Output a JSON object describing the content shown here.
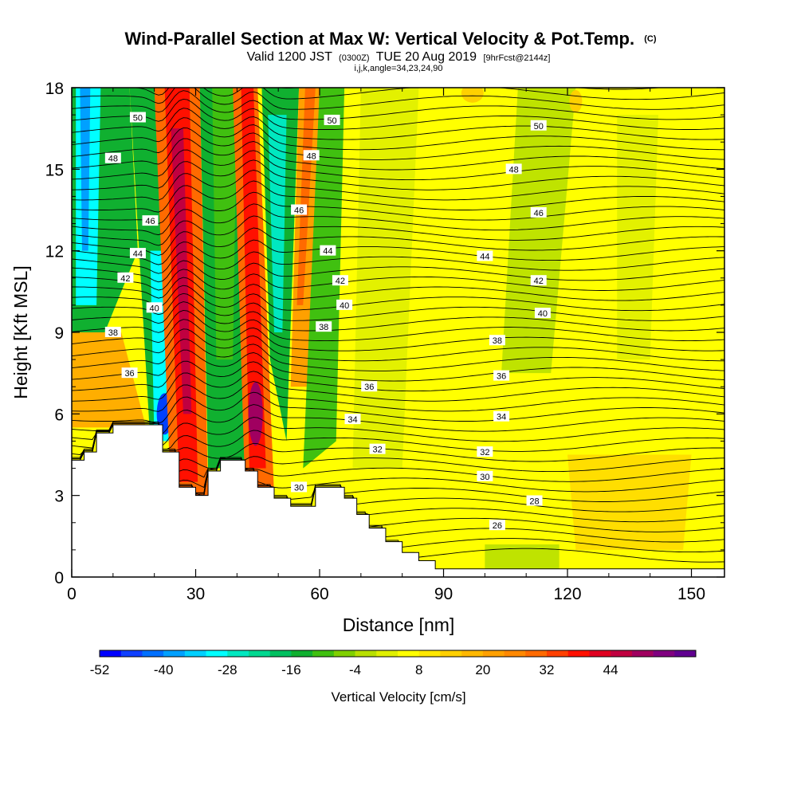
{
  "chart_data": {
    "type": "heatmap",
    "title_main": "Wind-Parallel Section at Max W: Vertical Velocity & Pot.Temp.",
    "title_units": "(C)",
    "subtitle_valid": "Valid 1200 JST",
    "subtitle_z": "(0300Z)",
    "subtitle_date": "TUE 20 Aug 2019",
    "subtitle_fcst": "[9hrFcst@2144z]",
    "subtitle_ijk": "i,j,k,angle=34,23,24,90",
    "xlabel": "Distance [nm]",
    "ylabel": "Height [Kft MSL]",
    "xlim": [
      0,
      158
    ],
    "ylim": [
      0,
      18
    ],
    "x_ticks": [
      "0",
      "30",
      "60",
      "90",
      "120",
      "150"
    ],
    "x_tick_values": [
      0,
      30,
      60,
      90,
      120,
      150
    ],
    "y_ticks": [
      "0",
      "3",
      "6",
      "9",
      "12",
      "15",
      "18"
    ],
    "y_tick_values": [
      0,
      3,
      6,
      9,
      12,
      15,
      18
    ],
    "colorbar": {
      "label": "Vertical Velocity [cm/s]",
      "min": -52,
      "step": 4,
      "ticks": [
        "-52",
        "-40",
        "-28",
        "-16",
        "-4",
        "8",
        "20",
        "32",
        "44"
      ],
      "colors": [
        "#0000ff",
        "#1040ff",
        "#0070ff",
        "#00a0ff",
        "#00d0ff",
        "#00ffff",
        "#00e8c0",
        "#00d890",
        "#00c060",
        "#10b030",
        "#40c010",
        "#80d000",
        "#b8e000",
        "#e0f000",
        "#ffff00",
        "#ffe800",
        "#ffd000",
        "#ffb800",
        "#ffa000",
        "#ff8800",
        "#ff6a00",
        "#ff4000",
        "#ff1000",
        "#e00020",
        "#c00040",
        "#a00060",
        "#800080",
        "#600090"
      ]
    },
    "contour_variable": "Potential Temperature (C)",
    "contour_labels": [
      "26",
      "28",
      "30",
      "30",
      "32",
      "32",
      "34",
      "34",
      "36",
      "36",
      "36",
      "38",
      "38",
      "38",
      "40",
      "40",
      "40",
      "42",
      "42",
      "42",
      "44",
      "44",
      "44",
      "46",
      "46",
      "46",
      "48",
      "48",
      "48",
      "50",
      "50",
      "50"
    ],
    "updrafts_cm_s": [
      {
        "x_nm": 27,
        "peak": 44
      },
      {
        "x_nm": 45,
        "peak": 44
      },
      {
        "x_nm": 60,
        "peak": 12
      }
    ],
    "downdrafts_cm_s": [
      {
        "x_nm": 3,
        "peak": -40
      },
      {
        "x_nm": 22,
        "peak": -48
      },
      {
        "x_nm": 50,
        "peak": -30
      }
    ],
    "terrain_kft": [
      [
        0,
        4.3
      ],
      [
        3,
        4.6
      ],
      [
        6,
        5.3
      ],
      [
        10,
        5.6
      ],
      [
        22,
        4.6
      ],
      [
        26,
        3.3
      ],
      [
        30,
        3.0
      ],
      [
        33,
        3.9
      ],
      [
        36,
        4.3
      ],
      [
        42,
        3.9
      ],
      [
        45,
        3.3
      ],
      [
        49,
        2.9
      ],
      [
        53,
        2.6
      ],
      [
        59,
        3.3
      ],
      [
        66,
        2.9
      ],
      [
        69,
        2.3
      ],
      [
        72,
        1.8
      ],
      [
        76,
        1.3
      ],
      [
        80,
        0.9
      ],
      [
        84,
        0.6
      ],
      [
        88,
        0.3
      ],
      [
        158,
        0.3
      ]
    ]
  }
}
